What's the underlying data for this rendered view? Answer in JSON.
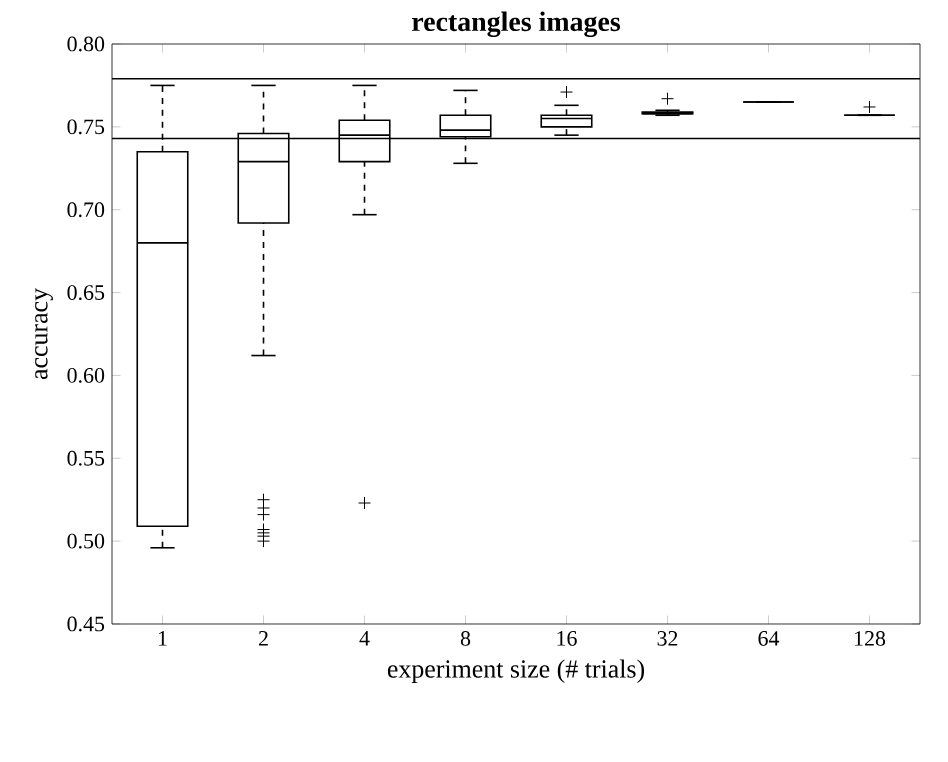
{
  "chart_data": {
    "type": "box",
    "title": "rectangles images",
    "xlabel": "experiment size (# trials)",
    "ylabel": "accuracy",
    "categories": [
      "1",
      "2",
      "4",
      "8",
      "16",
      "32",
      "64",
      "128"
    ],
    "boxes": [
      {
        "low": 0.496,
        "q1": 0.509,
        "median": 0.68,
        "q3": 0.735,
        "high": 0.775
      },
      {
        "low": 0.612,
        "q1": 0.692,
        "median": 0.729,
        "q3": 0.746,
        "high": 0.775,
        "outliers": [
          0.525,
          0.52,
          0.516,
          0.507,
          0.505,
          0.503,
          0.5
        ]
      },
      {
        "low": 0.697,
        "q1": 0.729,
        "median": 0.745,
        "q3": 0.754,
        "high": 0.775,
        "outliers": [
          0.523
        ]
      },
      {
        "low": 0.728,
        "q1": 0.744,
        "median": 0.748,
        "q3": 0.757,
        "high": 0.772
      },
      {
        "low": 0.745,
        "q1": 0.75,
        "median": 0.755,
        "q3": 0.757,
        "high": 0.763,
        "outliers": [
          0.771
        ]
      },
      {
        "low": 0.757,
        "q1": 0.758,
        "median": 0.758,
        "q3": 0.759,
        "high": 0.76,
        "outliers": [
          0.767
        ]
      },
      {
        "low": 0.765,
        "q1": 0.765,
        "median": 0.765,
        "q3": 0.765,
        "high": 0.765
      },
      {
        "low": 0.757,
        "q1": 0.757,
        "median": 0.757,
        "q3": 0.757,
        "high": 0.757,
        "outliers": [
          0.762
        ]
      }
    ],
    "ylim": [
      0.45,
      0.8
    ],
    "yticks": [
      {
        "value": 0.45,
        "label": "0.45"
      },
      {
        "value": 0.5,
        "label": "0.50"
      },
      {
        "value": 0.55,
        "label": "0.55"
      },
      {
        "value": 0.6,
        "label": "0.60"
      },
      {
        "value": 0.65,
        "label": "0.65"
      },
      {
        "value": 0.7,
        "label": "0.70"
      },
      {
        "value": 0.75,
        "label": "0.75"
      },
      {
        "value": 0.8,
        "label": "0.80"
      }
    ],
    "ref_lines": [
      {
        "axis": "y",
        "value": 0.779
      },
      {
        "axis": "y",
        "value": 0.743
      }
    ],
    "grid": false
  }
}
